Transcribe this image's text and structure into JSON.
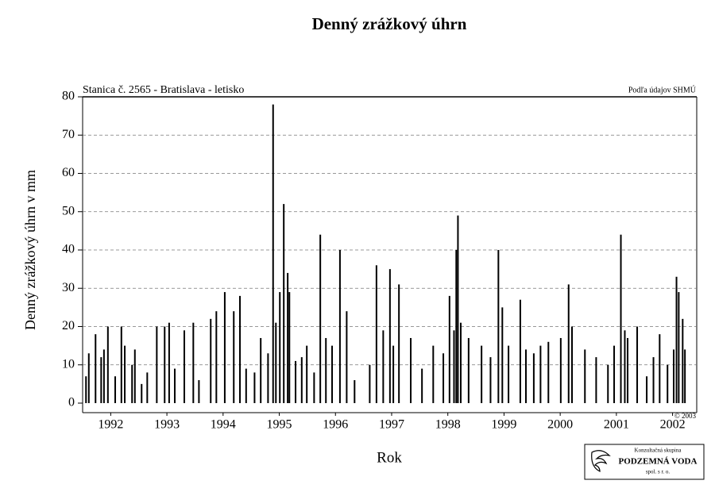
{
  "chart_data": {
    "type": "bar",
    "title": "Denný zrážkový úhrn",
    "subtitle": "Stanica č. 2565 - Bratislava - letisko",
    "source": "Podľa údajov SHMÚ",
    "copyright": "© 2003",
    "logo": {
      "line1": "Konzultačná skupina",
      "line2": "PODZEMNÁ VODA",
      "line3": "spol. s r. o."
    },
    "xlabel": "Rok",
    "ylabel": "Denný zrážkový úhrn v mm",
    "color": "#000000",
    "grid": true,
    "xlim": [
      1992,
      2002.93
    ],
    "ylim": [
      0,
      80
    ],
    "yticks": [
      0,
      10,
      20,
      30,
      40,
      50,
      60,
      70,
      80
    ],
    "xticks": [
      {
        "value": 1992.5,
        "label": "1992"
      },
      {
        "value": 1993.5,
        "label": "1993"
      },
      {
        "value": 1994.5,
        "label": "1994"
      },
      {
        "value": 1995.5,
        "label": "1995"
      },
      {
        "value": 1996.5,
        "label": "1996"
      },
      {
        "value": 1997.5,
        "label": "1997"
      },
      {
        "value": 1998.5,
        "label": "1998"
      },
      {
        "value": 1999.5,
        "label": "1999"
      },
      {
        "value": 2000.5,
        "label": "2000"
      },
      {
        "value": 2001.5,
        "label": "2001"
      },
      {
        "value": 2002.5,
        "label": "2002"
      }
    ],
    "x": [
      1992.06,
      1992.11,
      1992.23,
      1992.33,
      1992.38,
      1992.45,
      1992.58,
      1992.69,
      1992.75,
      1992.88,
      1992.93,
      1993.05,
      1993.15,
      1993.32,
      1993.46,
      1993.54,
      1993.64,
      1993.81,
      1993.97,
      1994.07,
      1994.28,
      1994.38,
      1994.53,
      1994.69,
      1994.8,
      1994.91,
      1995.06,
      1995.17,
      1995.3,
      1995.39,
      1995.44,
      1995.51,
      1995.58,
      1995.65,
      1995.68,
      1995.79,
      1995.9,
      1995.99,
      1996.12,
      1996.23,
      1996.33,
      1996.44,
      1996.58,
      1996.7,
      1996.84,
      1997.11,
      1997.23,
      1997.35,
      1997.47,
      1997.53,
      1997.63,
      1997.84,
      1998.04,
      1998.24,
      1998.42,
      1998.53,
      1998.61,
      1998.65,
      1998.68,
      1998.73,
      1998.87,
      1999.1,
      1999.26,
      1999.4,
      1999.47,
      1999.58,
      1999.79,
      1999.89,
      2000.03,
      2000.15,
      2000.29,
      2000.51,
      2000.65,
      2000.71,
      2000.94,
      2001.14,
      2001.35,
      2001.46,
      2001.58,
      2001.65,
      2001.7,
      2001.87,
      2002.04,
      2002.16,
      2002.27,
      2002.41,
      2002.52,
      2002.57,
      2002.61,
      2002.68,
      2002.72
    ],
    "values": [
      7,
      13,
      18,
      12,
      14,
      20,
      7,
      20,
      15,
      10,
      14,
      5,
      8,
      20,
      20,
      21,
      9,
      19,
      21,
      6,
      22,
      24,
      29,
      24,
      28,
      9,
      8,
      17,
      13,
      78,
      21,
      29,
      52,
      34,
      29,
      11,
      12,
      15,
      8,
      44,
      17,
      15,
      40,
      24,
      6,
      10,
      36,
      19,
      35,
      15,
      31,
      17,
      9,
      15,
      13,
      28,
      19,
      40,
      49,
      21,
      17,
      15,
      12,
      40,
      25,
      15,
      27,
      14,
      13,
      15,
      16,
      17,
      31,
      20,
      14,
      12,
      10,
      15,
      44,
      19,
      17,
      20,
      7,
      12,
      18,
      10,
      14,
      33,
      29,
      22,
      14
    ]
  }
}
